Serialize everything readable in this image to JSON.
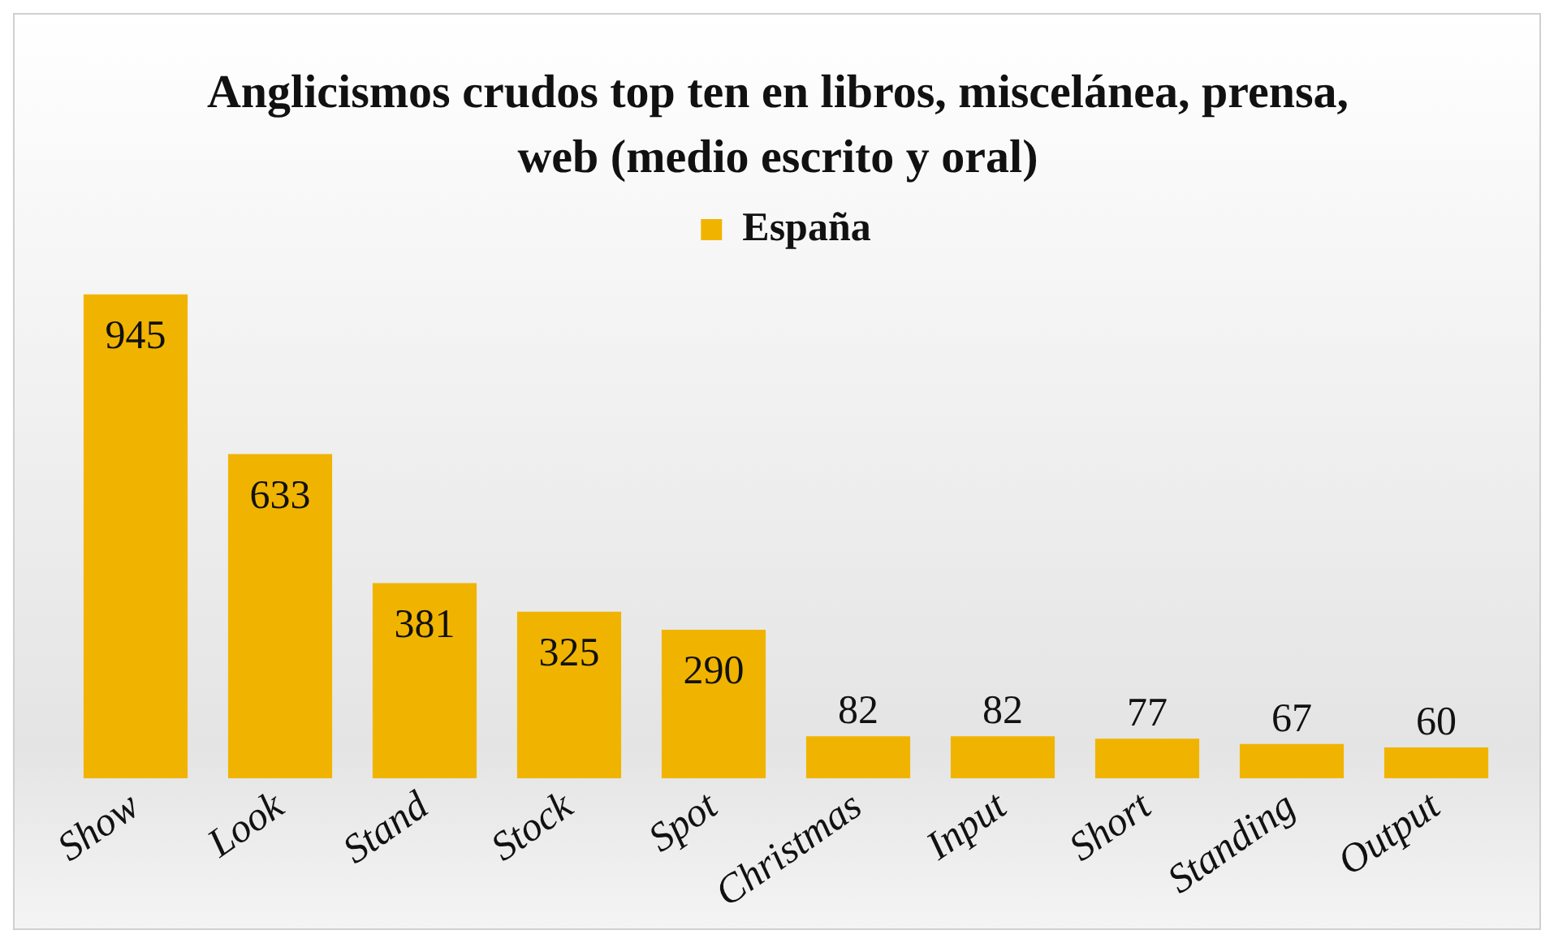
{
  "chart_data": {
    "type": "bar",
    "title": "Anglicismos crudos top ten en libros, miscelánea, prensa, web (medio escrito y oral)",
    "categories": [
      "Show",
      "Look",
      "Stand",
      "Stock",
      "Spot",
      "Christmas",
      "Input",
      "Short",
      "Standing",
      "Output"
    ],
    "series": [
      {
        "name": "España",
        "color": "#f0b400",
        "values": [
          945,
          633,
          381,
          325,
          290,
          82,
          82,
          77,
          67,
          60
        ]
      }
    ],
    "data_labels": true,
    "legend": "top",
    "grid": false
  }
}
